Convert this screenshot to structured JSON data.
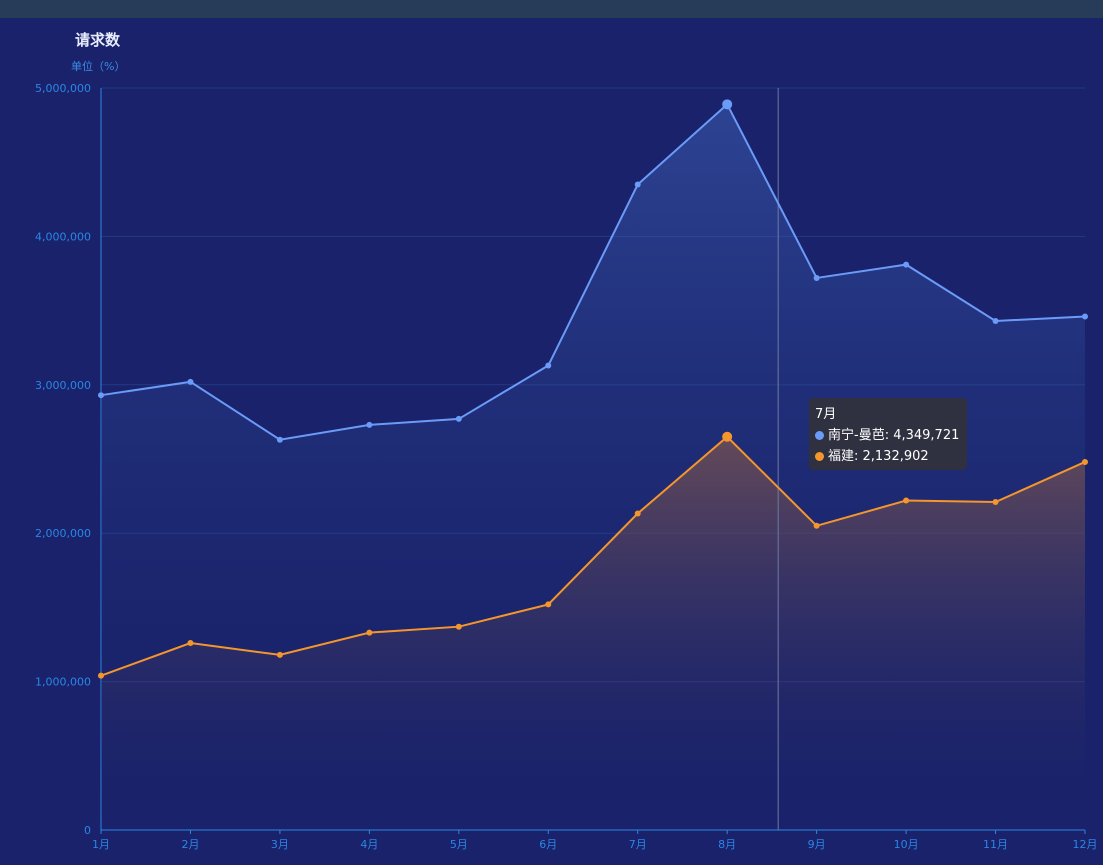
{
  "chart_data": {
    "type": "line",
    "title": "请求数",
    "unit_label": "单位（%）",
    "categories": [
      "1月",
      "2月",
      "3月",
      "4月",
      "5月",
      "6月",
      "7月",
      "8月",
      "9月",
      "10月",
      "11月",
      "12月"
    ],
    "series": [
      {
        "name": "南宁-曼芭",
        "color": "#6b9bf8",
        "values": [
          2930000,
          3020000,
          2630000,
          2730000,
          2770000,
          3130000,
          4349721,
          4890000,
          3720000,
          3810000,
          3430000,
          3460000
        ]
      },
      {
        "name": "福建",
        "color": "#f5962c",
        "values": [
          1040000,
          1260000,
          1180000,
          1330000,
          1370000,
          1520000,
          2132902,
          2650000,
          2050000,
          2220000,
          2210000,
          2480000
        ]
      }
    ],
    "ylim": [
      0,
      5000000
    ],
    "yticks": [
      "0",
      "1,000,000",
      "2,000,000",
      "3,000,000",
      "4,000,000",
      "5,000,000"
    ],
    "grid": true,
    "tooltip": {
      "title": "7月",
      "rows": [
        {
          "label": "南宁-曼芭: 4,349,721",
          "color": "#6b9bf8"
        },
        {
          "label": "福建: 2,132,902",
          "color": "#f5962c"
        }
      ]
    }
  }
}
